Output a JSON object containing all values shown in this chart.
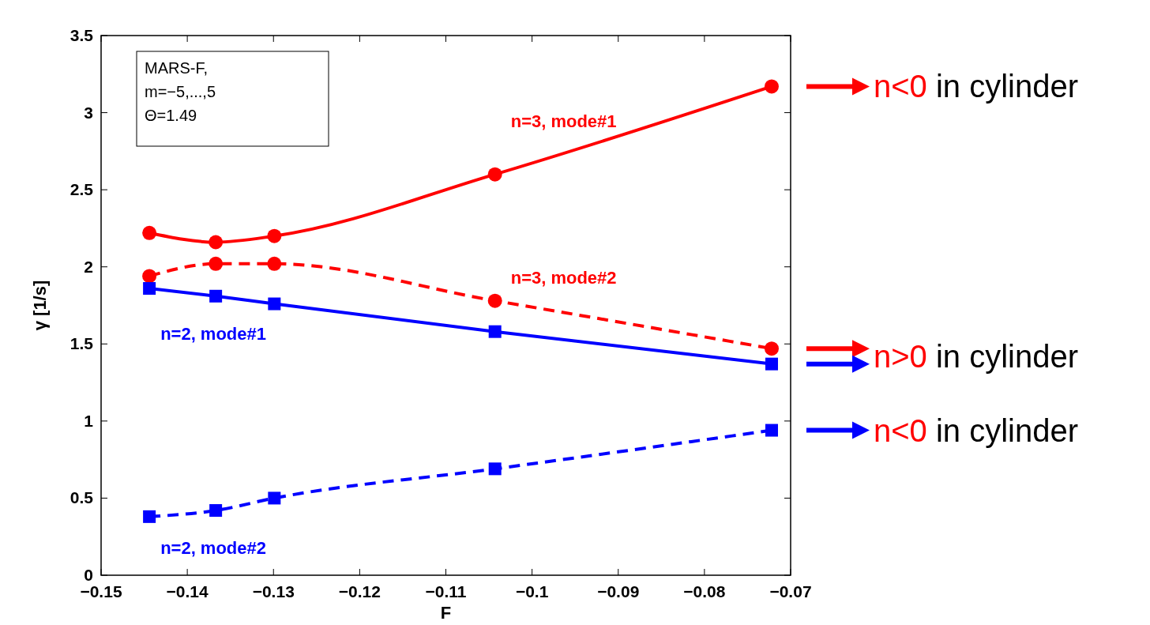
{
  "chart_data": {
    "type": "line",
    "xlabel": "F",
    "ylabel": "γ [1/s]",
    "x": [
      -0.1444,
      -0.1367,
      -0.1299,
      -0.1043,
      -0.0722
    ],
    "xlim": [
      -0.15,
      -0.07
    ],
    "xticks": [
      {
        "value": -0.15,
        "label": "−0.15"
      },
      {
        "value": -0.14,
        "label": "−0.14"
      },
      {
        "value": -0.13,
        "label": "−0.13"
      },
      {
        "value": -0.12,
        "label": "−0.12"
      },
      {
        "value": -0.11,
        "label": "−0.11"
      },
      {
        "value": -0.1,
        "label": "−0.1"
      },
      {
        "value": -0.09,
        "label": "−0.09"
      },
      {
        "value": -0.08,
        "label": "−0.08"
      },
      {
        "value": -0.07,
        "label": "−0.07"
      }
    ],
    "ylim": [
      0,
      3.5
    ],
    "yticks": [
      0,
      0.5,
      1,
      1.5,
      2,
      2.5,
      3,
      3.5
    ],
    "grid": false,
    "series": [
      {
        "name": "n=3, mode#1",
        "color": "#ff0000",
        "marker": "circle",
        "line_style": "solid",
        "values": [
          2.22,
          2.16,
          2.2,
          2.6,
          3.17
        ]
      },
      {
        "name": "n=3, mode#2",
        "color": "#ff0000",
        "marker": "circle",
        "line_style": "dashed",
        "values": [
          1.94,
          2.02,
          2.02,
          1.78,
          1.47
        ]
      },
      {
        "name": "n=2, mode#1",
        "color": "#0000ff",
        "marker": "square",
        "line_style": "solid",
        "values": [
          1.86,
          1.81,
          1.76,
          1.58,
          1.37
        ]
      },
      {
        "name": "n=2, mode#2",
        "color": "#0000ff",
        "marker": "square",
        "line_style": "dashed",
        "values": [
          0.38,
          0.42,
          0.5,
          0.69,
          0.94
        ]
      }
    ],
    "annotations": [
      "MARS-F,",
      "m=−5,...,5",
      "Θ=1.49",
      "n<0 in cylinder",
      "n>0 in cylinder",
      "n<0 in cylinder"
    ]
  }
}
